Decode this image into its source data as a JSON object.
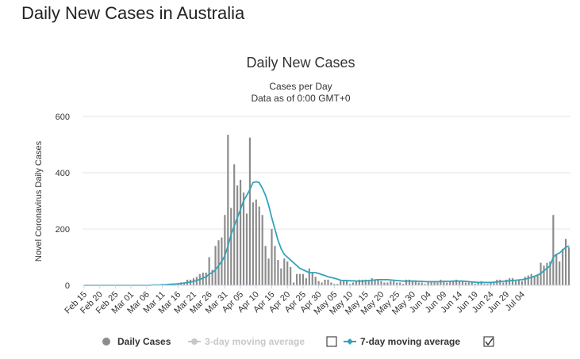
{
  "page": {
    "title": "Daily New Cases in Australia"
  },
  "colors": {
    "bars": "#8c8c8c",
    "line": "#33a3ba",
    "grid": "#e6e6e6",
    "disabled": "#c8c8c8"
  },
  "chart_data": {
    "type": "bar",
    "title": "Daily New Cases",
    "subtitle_lines": [
      "Cases per Day",
      "Data as of 0:00 GMT+0"
    ],
    "ylabel": "Novel Coronavirus Daily Cases",
    "xlabel": "",
    "ylim": [
      0,
      600
    ],
    "yticks": [
      0,
      200,
      400,
      600
    ],
    "grid": true,
    "legend_position": "bottom",
    "start_date": "Feb 15",
    "x_tick_labels": [
      "Feb 15",
      "Feb 20",
      "Feb 25",
      "Mar 01",
      "Mar 06",
      "Mar 11",
      "Mar 16",
      "Mar 21",
      "Mar 26",
      "Mar 31",
      "Apr 05",
      "Apr 10",
      "Apr 15",
      "Apr 20",
      "Apr 25",
      "Apr 30",
      "May 05",
      "May 10",
      "May 15",
      "May 20",
      "May 25",
      "May 30",
      "Jun 04",
      "Jun 09",
      "Jun 14",
      "Jun 19",
      "Jun 24",
      "Jun 29",
      "Jul 04"
    ],
    "series": [
      {
        "name": "Daily Cases",
        "type": "bar",
        "values": [
          0,
          0,
          0,
          0,
          0,
          0,
          0,
          0,
          0,
          0,
          0,
          0,
          0,
          0,
          0,
          0,
          0,
          0,
          0,
          0,
          0,
          0,
          1,
          1,
          2,
          2,
          3,
          5,
          5,
          5,
          8,
          10,
          10,
          20,
          20,
          25,
          30,
          40,
          45,
          45,
          100,
          55,
          140,
          160,
          170,
          250,
          535,
          275,
          430,
          355,
          375,
          330,
          255,
          525,
          295,
          305,
          280,
          250,
          140,
          95,
          200,
          140,
          90,
          60,
          95,
          85,
          65,
          10,
          40,
          40,
          40,
          25,
          60,
          45,
          30,
          15,
          10,
          20,
          20,
          10,
          5,
          5,
          15,
          15,
          15,
          5,
          10,
          15,
          20,
          20,
          20,
          15,
          25,
          20,
          20,
          15,
          10,
          10,
          15,
          15,
          10,
          10,
          5,
          20,
          20,
          15,
          15,
          10,
          10,
          5,
          15,
          15,
          15,
          10,
          20,
          15,
          10,
          15,
          15,
          20,
          15,
          15,
          10,
          10,
          10,
          5,
          10,
          15,
          5,
          5,
          10,
          10,
          20,
          20,
          10,
          20,
          25,
          25,
          15,
          20,
          15,
          30,
          35,
          40,
          30,
          40,
          80,
          70,
          80,
          85,
          250,
          110,
          85,
          130,
          165,
          135
        ],
        "status": "visible"
      },
      {
        "name": "3-day moving average",
        "type": "line",
        "values": [],
        "status": "hidden"
      },
      {
        "name": "7-day moving average",
        "type": "line",
        "values": [
          0,
          0,
          0,
          0,
          0,
          0,
          0,
          0,
          0,
          0,
          0,
          0,
          0,
          0,
          0,
          0,
          0,
          0,
          0,
          0,
          0,
          0,
          1,
          1,
          1,
          2,
          2,
          3,
          4,
          4,
          5,
          7,
          8,
          10,
          12,
          14,
          17,
          21,
          26,
          30,
          40,
          45,
          55,
          70,
          85,
          105,
          140,
          180,
          210,
          240,
          270,
          300,
          320,
          340,
          365,
          368,
          365,
          345,
          320,
          285,
          240,
          200,
          160,
          130,
          110,
          100,
          90,
          80,
          70,
          60,
          55,
          50,
          45,
          45,
          45,
          42,
          38,
          35,
          30,
          28,
          25,
          22,
          18,
          17,
          17,
          16,
          16,
          15,
          15,
          15,
          16,
          17,
          18,
          19,
          20,
          20,
          20,
          20,
          19,
          18,
          17,
          16,
          15,
          15,
          15,
          15,
          15,
          14,
          14,
          13,
          13,
          13,
          13,
          13,
          13,
          14,
          14,
          14,
          15,
          15,
          15,
          15,
          14,
          13,
          12,
          11,
          10,
          10,
          10,
          10,
          10,
          11,
          12,
          13,
          14,
          15,
          16,
          17,
          18,
          19,
          20,
          22,
          25,
          28,
          32,
          36,
          42,
          52,
          60,
          70,
          100,
          110,
          115,
          125,
          135,
          140
        ],
        "status": "visible"
      }
    ],
    "legend": [
      {
        "label": "Daily Cases",
        "icon": "circle-icon",
        "state": "visible"
      },
      {
        "label": "3-day moving average",
        "icon": "line-circle-icon",
        "state": "hidden"
      },
      {
        "label": "7-day moving average",
        "icon": "line-diamond-icon",
        "state": "visible",
        "checkbox": false
      },
      {
        "label": "",
        "icon": "checkbox-icon",
        "checkbox": true
      }
    ]
  }
}
